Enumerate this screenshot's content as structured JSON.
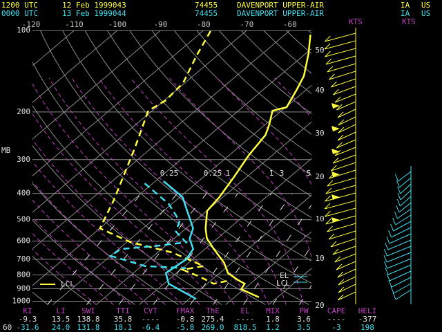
{
  "header": {
    "lines": [
      {
        "time": "1200 UTC",
        "date": "12 Feb 1999043",
        "station_id": "74455",
        "station": "DAVENPORT UPPER-AIR",
        "state": "IA",
        "country": "US"
      },
      {
        "time": "0000 UTC",
        "date": "13 Feb 1999044",
        "station_id": "74455",
        "station": "DAVENPORT UPPER-AIR",
        "state": "IA",
        "country": "US"
      }
    ]
  },
  "chart_data": {
    "type": "skew-t",
    "ylabel": "MB",
    "yscale": "log",
    "ylim": [
      100,
      1030
    ],
    "yticks": [
      100,
      200,
      300,
      400,
      500,
      600,
      700,
      800,
      900,
      1000
    ],
    "xlim": [
      -120,
      -55
    ],
    "xticks": [
      -120,
      -110,
      -100,
      -90,
      -80,
      -70,
      -60
    ],
    "grid": true,
    "mixing_ratio_labels": [
      "0.25",
      "0.25",
      "1",
      "1",
      "3",
      "5"
    ],
    "legend": "LCL",
    "annotations": [
      "EL",
      "LCL"
    ],
    "series": [
      {
        "color": "#ffff40",
        "dash": false,
        "x": [
          -54.1,
          -49.3,
          -44.3,
          -42.2,
          -39.8,
          -42.1,
          -39.1,
          -37.1,
          -35.4,
          -33.0,
          -30.8,
          -29.9,
          -25.5,
          -22.4,
          -17.9,
          -11.8,
          -8.1,
          -3.8,
          -1.3,
          -0.6,
          5.7
        ],
        "values": [
          103.6,
          122,
          147.4,
          165.9,
          192.1,
          197.9,
          222.5,
          243.3,
          290,
          346,
          413,
          464,
          538,
          587,
          642,
          721,
          787,
          836,
          862,
          903,
          967
        ]
      },
      {
        "color": "#ffff40",
        "dash": true,
        "x": [
          -78.2,
          -74.8,
          -70.4,
          -69.7,
          -70.9,
          -63.7,
          -54.4,
          -50.0,
          -39.0,
          -26.6,
          -15.6,
          -19.5,
          -13.6,
          -8.5,
          -5.4
        ],
        "values": [
          100.6,
          123.6,
          156.3,
          181.3,
          197.9,
          273.5,
          425,
          538,
          606,
          661,
          742,
          765,
          812,
          862,
          836
        ]
      },
      {
        "color": "#40e0f0",
        "dash": false,
        "x": [
          -48.1,
          -39.3,
          -35.7,
          -28.4,
          -26.4,
          -22.7,
          -21.5,
          -22.0,
          -22.5,
          -18.9,
          -8.4
        ],
        "values": [
          360.5,
          413,
          451,
          538,
          587,
          642,
          701,
          742,
          787,
          862,
          981
        ]
      },
      {
        "color": "#40e0f0",
        "dash": true,
        "x": [
          -51.9,
          -40.6,
          -33.5,
          -31.5,
          -26.2,
          -31.7,
          -39.5,
          -40.0,
          -29.2,
          -19.1
        ],
        "values": [
          367,
          438,
          506,
          553,
          606,
          624,
          642,
          680,
          742,
          755
        ]
      }
    ]
  },
  "wind": {
    "units_labels": [
      "KTS",
      "KTS"
    ],
    "height_labels": [
      "50",
      "40",
      "30",
      "20",
      "10",
      "10",
      "20"
    ]
  },
  "indices": {
    "headers": [
      "KI",
      "LI",
      "SWI",
      "TTI",
      "CVT",
      "FMAX",
      "ThE",
      "EL",
      "MIX",
      "PW",
      "CAPE",
      "HELI"
    ],
    "rows": [
      [
        "-9.3",
        "13.5",
        "138.8",
        "35.8",
        "----",
        "-0.8",
        "275.4",
        "----",
        "1.8",
        "3.6",
        "----",
        "-377"
      ],
      [
        "-31.6",
        "24.0",
        "131.8",
        "18.1",
        "-6.4",
        "-5.8",
        "269.0",
        "818.5",
        "1.2",
        "3.5",
        "-3",
        "198"
      ]
    ]
  },
  "footer": "60"
}
